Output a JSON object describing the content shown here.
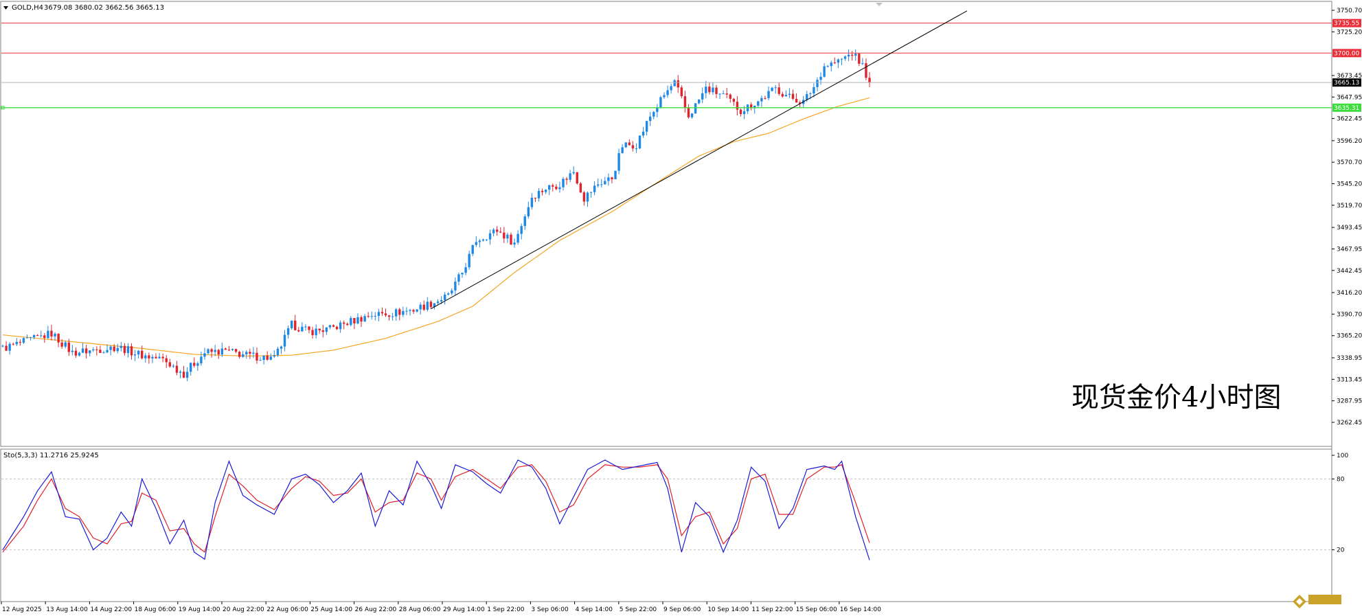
{
  "header": {
    "arrow_icon": "triangle-down-icon",
    "symbol": "GOLD,H4",
    "ohlc": "3679.08 3680.02 3662.56 3665.13"
  },
  "watermark": "现货金价4小时图",
  "osc_header": "Sto(5,3,3) 11.2716 25.9245",
  "colors": {
    "up": "#1e88e5",
    "down": "#e0242c",
    "ma": "#f5a623",
    "stoch_main": "#1a1ad6",
    "stoch_signal": "#e0202a",
    "resistance": "#e8303a",
    "support": "#3ddc3d",
    "current": "#b0b0b0",
    "trendline": "#000000"
  },
  "chart_data": [
    {
      "type": "candlestick",
      "title": "GOLD,H4",
      "ylim": [
        3262.45,
        3750.7
      ],
      "price_axis_labels": [
        "3750.70",
        "3725.20",
        "3673.45",
        "3647.95",
        "3622.45",
        "3596.20",
        "3570.70",
        "3545.20",
        "3519.70",
        "3493.45",
        "3467.95",
        "3442.45",
        "3416.20",
        "3390.70",
        "3365.20",
        "3338.95",
        "3313.45",
        "3287.95",
        "3262.45"
      ],
      "time_labels": [
        "12 Aug 2025",
        "13 Aug 14:00",
        "14 Aug 22:00",
        "18 Aug 06:00",
        "19 Aug 14:00",
        "20 Aug 22:00",
        "22 Aug 06:00",
        "25 Aug 14:00",
        "26 Aug 22:00",
        "28 Aug 06:00",
        "29 Aug 14:00",
        "1 Sep 22:00",
        "3 Sep 06:00",
        "4 Sep 14:00",
        "5 Sep 22:00",
        "9 Sep 06:00",
        "10 Sep 14:00",
        "11 Sep 22:00",
        "15 Sep 06:00",
        "16 Sep 14:00"
      ],
      "close_anchors": [
        [
          0,
          3350
        ],
        [
          8,
          3360
        ],
        [
          14,
          3368
        ],
        [
          20,
          3345
        ],
        [
          26,
          3348
        ],
        [
          33,
          3352
        ],
        [
          40,
          3342
        ],
        [
          46,
          3337
        ],
        [
          52,
          3320
        ],
        [
          58,
          3345
        ],
        [
          64,
          3347
        ],
        [
          70,
          3342
        ],
        [
          78,
          3338
        ],
        [
          83,
          3378
        ],
        [
          88,
          3370
        ],
        [
          94,
          3373
        ],
        [
          100,
          3382
        ],
        [
          106,
          3390
        ],
        [
          112,
          3392
        ],
        [
          118,
          3396
        ],
        [
          124,
          3405
        ],
        [
          128,
          3412
        ],
        [
          132,
          3440
        ],
        [
          136,
          3478
        ],
        [
          142,
          3490
        ],
        [
          147,
          3475
        ],
        [
          152,
          3530
        ],
        [
          156,
          3540
        ],
        [
          160,
          3545
        ],
        [
          164,
          3560
        ],
        [
          167,
          3528
        ],
        [
          171,
          3545
        ],
        [
          175,
          3552
        ],
        [
          178,
          3590
        ],
        [
          182,
          3592
        ],
        [
          186,
          3625
        ],
        [
          190,
          3650
        ],
        [
          193,
          3665
        ],
        [
          197,
          3625
        ],
        [
          202,
          3658
        ],
        [
          207,
          3650
        ],
        [
          212,
          3632
        ],
        [
          217,
          3643
        ],
        [
          222,
          3658
        ],
        [
          226,
          3648
        ],
        [
          230,
          3642
        ],
        [
          233,
          3660
        ],
        [
          236,
          3685
        ],
        [
          240,
          3690
        ],
        [
          244,
          3700
        ],
        [
          247,
          3685
        ],
        [
          249,
          3665.13
        ]
      ],
      "ma_anchors": [
        [
          0,
          3366
        ],
        [
          20,
          3358
        ],
        [
          40,
          3350
        ],
        [
          55,
          3343
        ],
        [
          70,
          3341
        ],
        [
          83,
          3342
        ],
        [
          95,
          3348
        ],
        [
          110,
          3362
        ],
        [
          125,
          3382
        ],
        [
          135,
          3400
        ],
        [
          147,
          3440
        ],
        [
          160,
          3478
        ],
        [
          175,
          3512
        ],
        [
          190,
          3552
        ],
        [
          200,
          3578
        ],
        [
          210,
          3595
        ],
        [
          220,
          3605
        ],
        [
          230,
          3622
        ],
        [
          240,
          3637
        ],
        [
          249,
          3647
        ]
      ],
      "horizontal_lines": [
        {
          "name": "resistance-high",
          "price": 3735.55,
          "label": "3735.55"
        },
        {
          "name": "resistance",
          "price": 3700.0,
          "label": "3700.00"
        },
        {
          "name": "current-price",
          "price": 3665.13,
          "label": "3665.13"
        },
        {
          "name": "support",
          "price": 3635.31,
          "label": "3635.31"
        }
      ],
      "trendline": {
        "from": [
          123,
          3397
        ],
        "to": [
          277,
          3750
        ]
      },
      "bars_visible": 250,
      "bars_total_span": 383
    },
    {
      "type": "line",
      "title": "Sto(5,3,3) 11.2716 25.9245",
      "ylim": [
        0,
        100
      ],
      "levels": [
        20,
        80
      ],
      "axis_labels": [
        "100",
        "80",
        "20"
      ],
      "series": [
        {
          "name": "main",
          "value": 11.2716
        },
        {
          "name": "signal",
          "value": 25.9245
        }
      ],
      "main_anchors": [
        [
          0,
          20
        ],
        [
          6,
          48
        ],
        [
          10,
          70
        ],
        [
          14,
          86
        ],
        [
          18,
          48
        ],
        [
          22,
          46
        ],
        [
          26,
          20
        ],
        [
          30,
          30
        ],
        [
          34,
          52
        ],
        [
          37,
          40
        ],
        [
          40,
          80
        ],
        [
          44,
          55
        ],
        [
          48,
          25
        ],
        [
          52,
          45
        ],
        [
          55,
          18
        ],
        [
          58,
          12
        ],
        [
          61,
          60
        ],
        [
          65,
          95
        ],
        [
          69,
          66
        ],
        [
          73,
          58
        ],
        [
          78,
          50
        ],
        [
          83,
          80
        ],
        [
          87,
          84
        ],
        [
          91,
          75
        ],
        [
          95,
          60
        ],
        [
          99,
          70
        ],
        [
          103,
          85
        ],
        [
          107,
          40
        ],
        [
          111,
          70
        ],
        [
          115,
          58
        ],
        [
          119,
          95
        ],
        [
          123,
          75
        ],
        [
          126,
          55
        ],
        [
          130,
          92
        ],
        [
          135,
          86
        ],
        [
          139,
          76
        ],
        [
          143,
          68
        ],
        [
          148,
          96
        ],
        [
          152,
          90
        ],
        [
          156,
          72
        ],
        [
          160,
          42
        ],
        [
          164,
          65
        ],
        [
          168,
          88
        ],
        [
          173,
          96
        ],
        [
          178,
          88
        ],
        [
          183,
          91
        ],
        [
          188,
          94
        ],
        [
          191,
          72
        ],
        [
          195,
          18
        ],
        [
          199,
          60
        ],
        [
          203,
          48
        ],
        [
          207,
          18
        ],
        [
          211,
          45
        ],
        [
          215,
          90
        ],
        [
          219,
          78
        ],
        [
          223,
          38
        ],
        [
          227,
          55
        ],
        [
          231,
          88
        ],
        [
          236,
          91
        ],
        [
          239,
          88
        ],
        [
          241,
          95
        ],
        [
          245,
          48
        ],
        [
          249,
          11.27
        ]
      ],
      "signal_anchors": [
        [
          0,
          18
        ],
        [
          6,
          40
        ],
        [
          10,
          62
        ],
        [
          14,
          80
        ],
        [
          18,
          55
        ],
        [
          22,
          48
        ],
        [
          26,
          30
        ],
        [
          30,
          25
        ],
        [
          34,
          42
        ],
        [
          37,
          44
        ],
        [
          40,
          68
        ],
        [
          44,
          62
        ],
        [
          48,
          36
        ],
        [
          52,
          38
        ],
        [
          55,
          25
        ],
        [
          58,
          18
        ],
        [
          61,
          48
        ],
        [
          65,
          84
        ],
        [
          69,
          74
        ],
        [
          73,
          62
        ],
        [
          78,
          54
        ],
        [
          83,
          72
        ],
        [
          87,
          82
        ],
        [
          91,
          78
        ],
        [
          95,
          66
        ],
        [
          99,
          68
        ],
        [
          103,
          80
        ],
        [
          107,
          52
        ],
        [
          111,
          60
        ],
        [
          115,
          62
        ],
        [
          119,
          85
        ],
        [
          123,
          80
        ],
        [
          126,
          62
        ],
        [
          130,
          82
        ],
        [
          135,
          88
        ],
        [
          139,
          80
        ],
        [
          143,
          72
        ],
        [
          148,
          90
        ],
        [
          152,
          92
        ],
        [
          156,
          78
        ],
        [
          160,
          52
        ],
        [
          164,
          58
        ],
        [
          168,
          80
        ],
        [
          173,
          92
        ],
        [
          178,
          90
        ],
        [
          183,
          90
        ],
        [
          188,
          92
        ],
        [
          191,
          80
        ],
        [
          195,
          32
        ],
        [
          199,
          48
        ],
        [
          203,
          52
        ],
        [
          207,
          25
        ],
        [
          211,
          38
        ],
        [
          215,
          80
        ],
        [
          219,
          84
        ],
        [
          223,
          50
        ],
        [
          227,
          50
        ],
        [
          231,
          80
        ],
        [
          236,
          90
        ],
        [
          239,
          90
        ],
        [
          241,
          92
        ],
        [
          245,
          60
        ],
        [
          249,
          25.92
        ]
      ]
    }
  ]
}
